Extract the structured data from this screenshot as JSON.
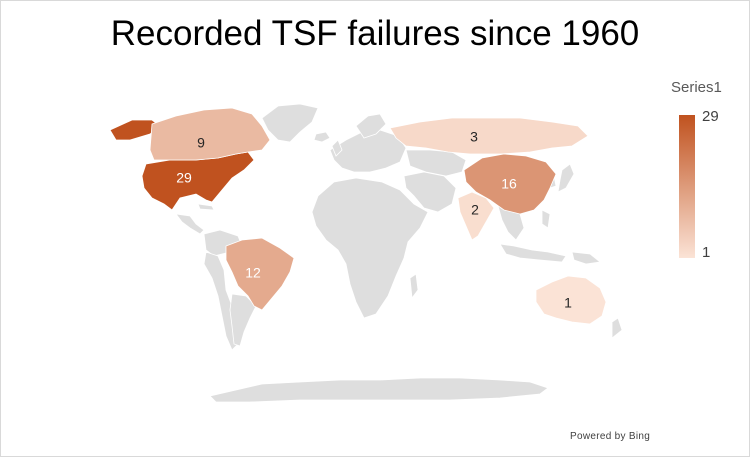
{
  "title": "Recorded TSF failures since 1960",
  "legend": {
    "title": "Series1",
    "max_label": "29",
    "min_label": "1",
    "high_color": "#c0521f",
    "low_color": "#fbe3d6"
  },
  "attribution": "Powered by Bing",
  "colors": {
    "land": "#dedede",
    "border": "#ffffff"
  },
  "chart_data": {
    "type": "choropleth",
    "title": "Recorded TSF failures since 1960",
    "legend_title": "Series1",
    "scale": {
      "min": 1,
      "max": 29
    },
    "regions": [
      {
        "country": "United States",
        "value": 29,
        "label": "29"
      },
      {
        "country": "China",
        "value": 16,
        "label": "16"
      },
      {
        "country": "Brazil",
        "value": 12,
        "label": "12"
      },
      {
        "country": "Canada",
        "value": 9,
        "label": "9"
      },
      {
        "country": "Russia",
        "value": 3,
        "label": "3"
      },
      {
        "country": "India",
        "value": 2,
        "label": "2"
      },
      {
        "country": "Australia",
        "value": 1,
        "label": "1"
      }
    ]
  }
}
